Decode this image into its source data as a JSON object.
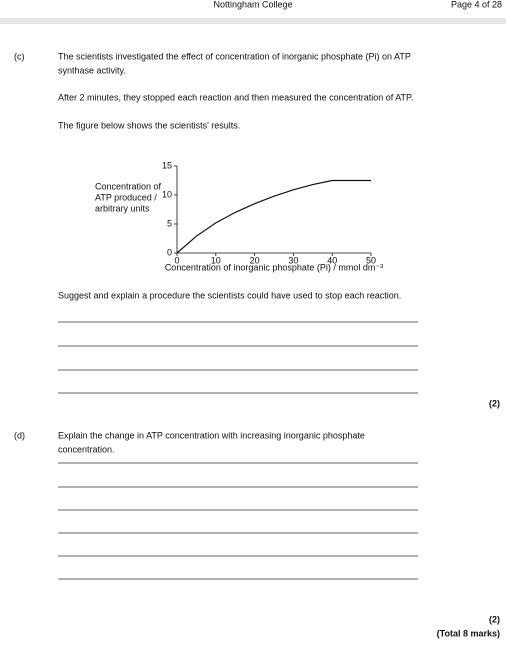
{
  "header": {
    "center": "Nottingham College",
    "right": "Page 4 of 28"
  },
  "part_c": {
    "label": "(c)",
    "lines": [
      "The scientists investigated the effect of concentration of inorganic phosphate (Pi) on ATP",
      "synthase activity."
    ],
    "para2": "After 2 minutes, they stopped each reaction and then measured the concentration of ATP.",
    "para3": "The figure below shows the scientists' results.",
    "question": "Suggest and explain a procedure the scientists could have used to stop each reaction.",
    "marks": "(2)"
  },
  "chart_data": {
    "type": "line",
    "y_label": [
      "Concentration of",
      "ATP produced /",
      "arbitrary units"
    ],
    "x_label": "Concentration of inorganic phosphate (Pi) / mmol dm⁻³",
    "x": [
      0,
      5,
      10,
      15,
      20,
      25,
      30,
      35,
      40,
      45,
      50
    ],
    "values": [
      0,
      2.9,
      5.2,
      7.0,
      8.5,
      9.8,
      10.9,
      11.8,
      12.5,
      12.5,
      12.5
    ],
    "color": "#111111",
    "xlim": [
      0,
      50
    ],
    "xticks": [
      0,
      10,
      20,
      30,
      40,
      50
    ],
    "ylim": [
      0,
      15
    ],
    "yticks": [
      0,
      5,
      10,
      15
    ]
  },
  "part_d": {
    "label": "(d)",
    "lines": [
      "Explain the change in ATP concentration with increasing inorganic phosphate",
      "concentration."
    ],
    "marks": "(2)",
    "total": "(Total 8 marks)"
  }
}
